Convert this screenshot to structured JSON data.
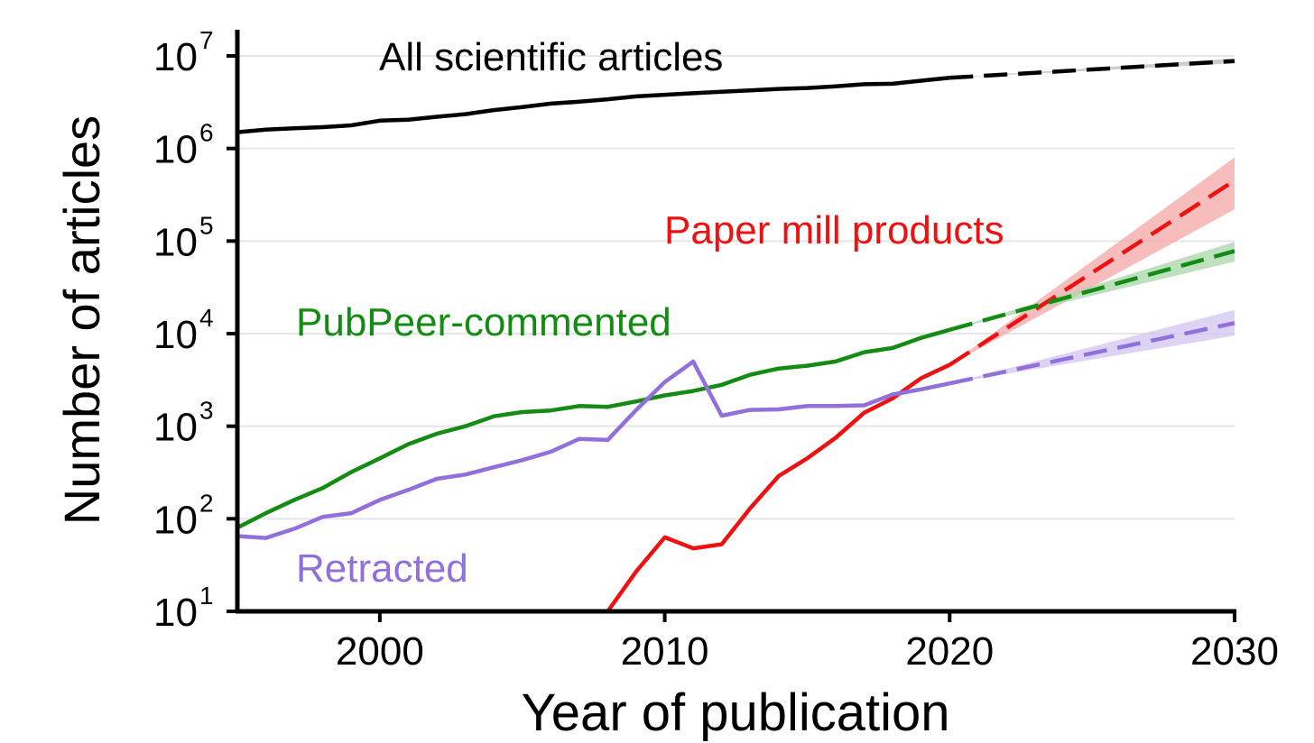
{
  "chart_data": {
    "type": "line",
    "title": "",
    "xlabel": "Year of publication",
    "ylabel": "Number of articles",
    "yscale": "log10",
    "xlim": [
      1995,
      2030
    ],
    "ylim": [
      10,
      10000000
    ],
    "x_ticks": [
      2000,
      2010,
      2020,
      2030
    ],
    "y_tick_exponents": [
      1,
      2,
      3,
      4,
      5,
      6,
      7
    ],
    "y_tick_base": "10",
    "grid": "horizontal",
    "series": [
      {
        "name": "All scientific articles",
        "color": "#000000",
        "label_color": "#000000",
        "x": [
          1995,
          1996,
          1997,
          1998,
          1999,
          2000,
          2001,
          2002,
          2003,
          2004,
          2005,
          2006,
          2007,
          2008,
          2009,
          2010,
          2011,
          2012,
          2013,
          2014,
          2015,
          2016,
          2017,
          2018,
          2019,
          2020
        ],
        "values": [
          1500000,
          1600000,
          1650000,
          1700000,
          1780000,
          2000000,
          2050000,
          2200000,
          2350000,
          2600000,
          2800000,
          3050000,
          3200000,
          3400000,
          3650000,
          3800000,
          3950000,
          4100000,
          4250000,
          4400000,
          4500000,
          4700000,
          4950000,
          5000000,
          5400000,
          5800000
        ],
        "projection_x": [
          2020,
          2030
        ],
        "projection_values": [
          5800000,
          8800000
        ],
        "band_lower": [
          5800000,
          8300000
        ],
        "band_upper": [
          5800000,
          9400000
        ],
        "band_color": "#bbbbbb"
      },
      {
        "name": "Paper mill products",
        "color": "#ee1111",
        "label_color": "#ee1111",
        "x": [
          2008,
          2009,
          2010,
          2011,
          2012,
          2013,
          2014,
          2015,
          2016,
          2017,
          2018,
          2019,
          2020
        ],
        "values": [
          10,
          27,
          63,
          48,
          53,
          130,
          290,
          450,
          750,
          1400,
          2000,
          3300,
          4600
        ],
        "projection_x": [
          2020,
          2030
        ],
        "projection_values": [
          4600,
          450000
        ],
        "band_lower": [
          4600,
          220000
        ],
        "band_upper": [
          4600,
          800000
        ],
        "band_color": "#f4a6a6"
      },
      {
        "name": "PubPeer-commented",
        "color": "#148c14",
        "label_color": "#148c14",
        "x": [
          1995,
          1996,
          1997,
          1998,
          1999,
          2000,
          2001,
          2002,
          2003,
          2004,
          2005,
          2006,
          2007,
          2008,
          2009,
          2010,
          2011,
          2012,
          2013,
          2014,
          2015,
          2016,
          2017,
          2018,
          2019,
          2020
        ],
        "values": [
          80,
          115,
          160,
          215,
          320,
          450,
          640,
          830,
          1000,
          1280,
          1420,
          1480,
          1650,
          1620,
          1850,
          2150,
          2400,
          2800,
          3600,
          4200,
          4500,
          5000,
          6300,
          7000,
          9000,
          11000
        ],
        "projection_x": [
          2020,
          2030
        ],
        "projection_values": [
          11000,
          78000
        ],
        "band_lower": [
          11000,
          60000
        ],
        "band_upper": [
          11000,
          98000
        ],
        "band_color": "#a9d6a9"
      },
      {
        "name": "Retracted",
        "color": "#9170dc",
        "label_color": "#9170dc",
        "x": [
          1995,
          1996,
          1997,
          1998,
          1999,
          2000,
          2001,
          2002,
          2003,
          2004,
          2005,
          2006,
          2007,
          2008,
          2009,
          2010,
          2011,
          2012,
          2013,
          2014,
          2015,
          2016,
          2017,
          2018,
          2019,
          2020
        ],
        "values": [
          65,
          62,
          78,
          105,
          115,
          160,
          205,
          270,
          300,
          360,
          430,
          530,
          730,
          710,
          1500,
          3000,
          5000,
          1300,
          1500,
          1520,
          1650,
          1650,
          1680,
          2200,
          2500,
          2900
        ],
        "projection_x": [
          2020,
          2030
        ],
        "projection_values": [
          2900,
          13000
        ],
        "band_lower": [
          2900,
          9500
        ],
        "band_upper": [
          2900,
          18000
        ],
        "band_color": "#d2c6f2"
      }
    ],
    "annotations": [
      {
        "text": "All scientific articles",
        "series": "All scientific articles",
        "color": "#000000"
      },
      {
        "text": "Paper mill products",
        "series": "Paper mill products",
        "color": "#ee1111"
      },
      {
        "text": "PubPeer-commented",
        "series": "PubPeer-commented",
        "color": "#148c14"
      },
      {
        "text": "Retracted",
        "series": "Retracted",
        "color": "#9170dc"
      }
    ]
  }
}
